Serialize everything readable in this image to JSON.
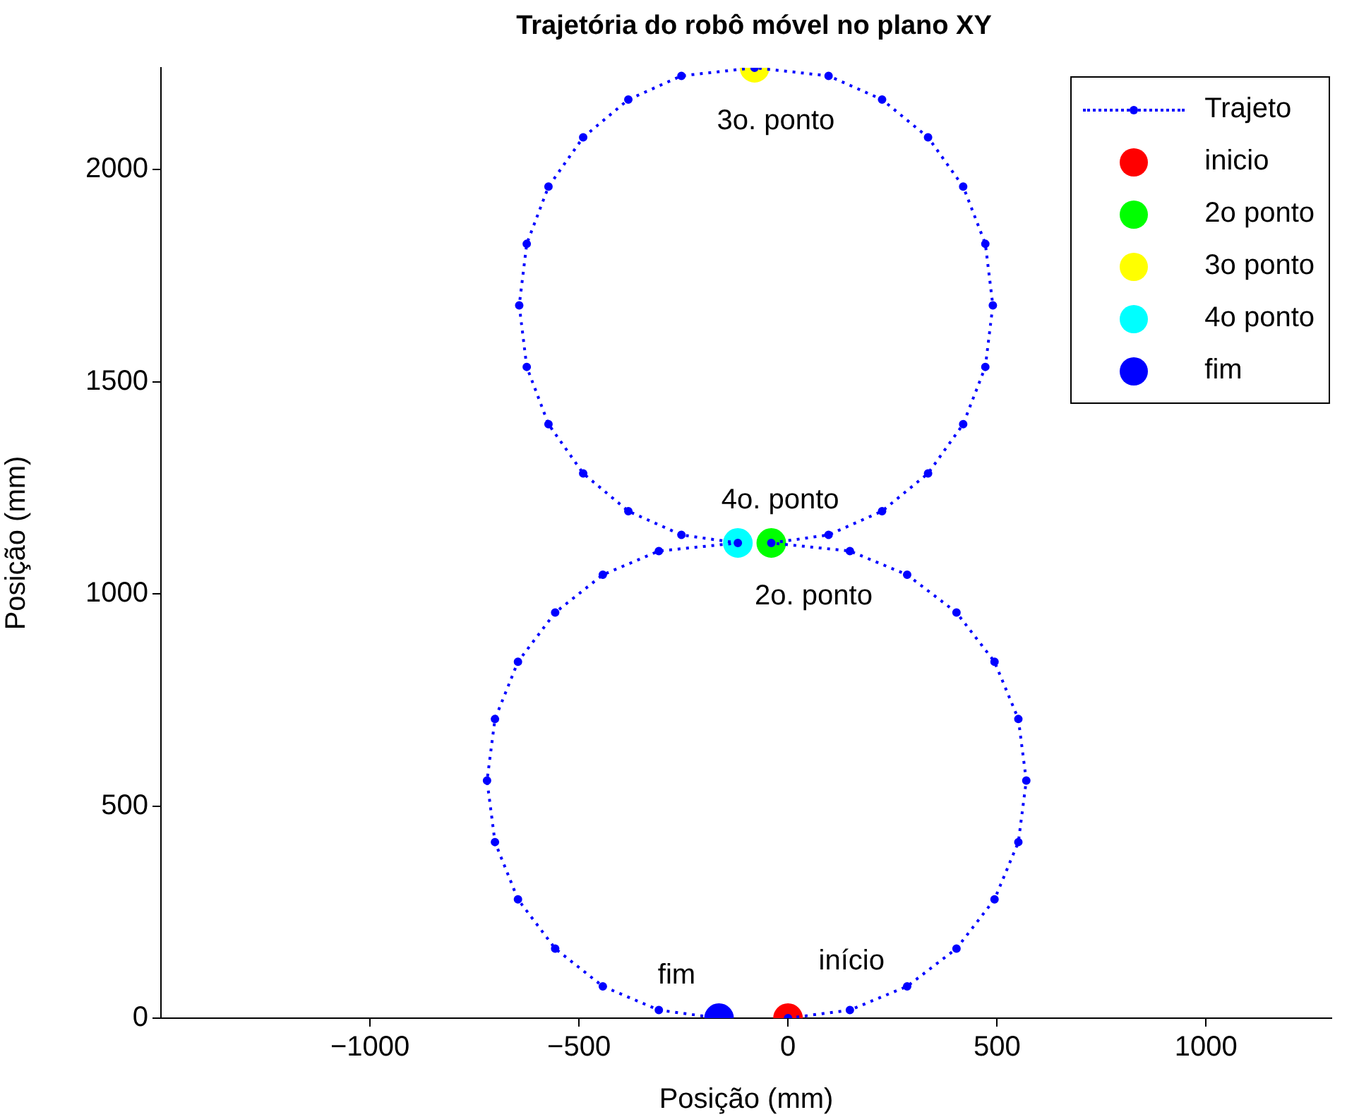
{
  "chart_data": {
    "type": "line",
    "title": "Trajetória do robô móvel no plano XY",
    "xlabel": "Posição (mm)",
    "ylabel": "Posição (mm)",
    "xlim": [
      -1500,
      1300
    ],
    "xticks": [
      {
        "value": -1000,
        "label": "−1000"
      },
      {
        "value": -500,
        "label": "−500"
      },
      0,
      500,
      1000
    ],
    "ylim": [
      0,
      2240
    ],
    "yticks": [
      0,
      500,
      1000,
      1500,
      2000
    ],
    "grid": false,
    "legend": "top right",
    "series": [
      {
        "name": "Trajeto",
        "type": "line",
        "color": "#0000ff",
        "marker": "circle",
        "line_style": "dotted",
        "x": [
          0,
          148,
          285,
          403,
          494,
          551,
          570,
          551,
          494,
          403,
          285,
          148,
          -40,
          97,
          225,
          335,
          419,
          472,
          490,
          472,
          419,
          335,
          225,
          97,
          -80,
          -255,
          -382,
          -490,
          -573,
          -625,
          -643,
          -625,
          -573,
          -490,
          -382,
          -255,
          -120,
          -309,
          -443,
          -557,
          -646,
          -701,
          -720,
          -701,
          -646,
          -557,
          -443,
          -309,
          -165
        ],
        "values": [
          0,
          19,
          75,
          164,
          280,
          415,
          560,
          705,
          840,
          956,
          1045,
          1101,
          1120,
          1139,
          1195,
          1284,
          1400,
          1535,
          1680,
          1825,
          1960,
          2076,
          2165,
          2221,
          2240,
          2221,
          2165,
          2076,
          1960,
          1825,
          1680,
          1535,
          1400,
          1284,
          1195,
          1139,
          1120,
          1101,
          1045,
          956,
          840,
          705,
          560,
          415,
          280,
          164,
          75,
          19,
          0
        ]
      },
      {
        "name": "inicio",
        "type": "scatter",
        "color": "#ff0000",
        "marker": "circle",
        "x": [
          0
        ],
        "values": [
          0
        ]
      },
      {
        "name": "2o ponto",
        "type": "scatter",
        "color": "#00ff00",
        "marker": "circle",
        "x": [
          -40
        ],
        "values": [
          1120
        ]
      },
      {
        "name": "3o ponto",
        "type": "scatter",
        "color": "#ffff00",
        "marker": "circle",
        "x": [
          -80
        ],
        "values": [
          2240
        ]
      },
      {
        "name": "4o ponto",
        "type": "scatter",
        "color": "#00ffff",
        "marker": "circle",
        "x": [
          -120
        ],
        "values": [
          1120
        ]
      },
      {
        "name": "fim",
        "type": "scatter",
        "color": "#0000ff",
        "marker": "circle",
        "x": [
          -165
        ],
        "values": [
          0
        ]
      }
    ],
    "annotations": [
      {
        "text": "início",
        "x": 0,
        "y": 0
      },
      {
        "text": "fim",
        "x": -165,
        "y": 0
      },
      {
        "text": "2o. ponto",
        "x": -40,
        "y": 1120
      },
      {
        "text": "4o. ponto",
        "x": -120,
        "y": 1120
      },
      {
        "text": "3o. ponto",
        "x": -80,
        "y": 2240
      }
    ]
  }
}
